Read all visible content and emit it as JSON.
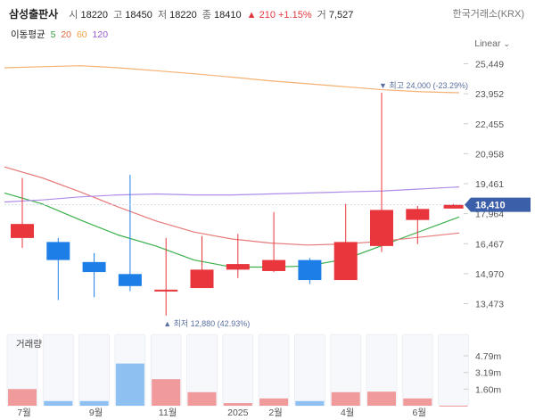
{
  "header": {
    "name": "삼성출판사",
    "open_label": "시",
    "open": "18220",
    "high_label": "고",
    "high": "18450",
    "low_label": "저",
    "low": "18220",
    "close_label": "종",
    "close": "18410",
    "change": "▲ 210 +1.15%",
    "volume_label": "거",
    "volume": "7,527",
    "exchange": "한국거래소(KRX)"
  },
  "ma": {
    "label": "이동평균",
    "items": [
      {
        "text": "5",
        "color": "#2e9d3b"
      },
      {
        "text": "20",
        "color": "#e06a3c"
      },
      {
        "text": "60",
        "color": "#f0a040"
      },
      {
        "text": "120",
        "color": "#9b59d0"
      }
    ]
  },
  "scale_label": "Linear",
  "chart_data": {
    "type": "candlestick",
    "period": "monthly",
    "price_ticks": [
      25449,
      23952,
      22455,
      20958,
      19461,
      17964,
      16467,
      14970,
      13473
    ],
    "volume_ticks": [
      "4.79m",
      "3.19m",
      "1.60m"
    ],
    "x_tick_labels": [
      "7월",
      "9월",
      "11월",
      "2025",
      "2월",
      "4월",
      "6월"
    ],
    "current_price": "18,410",
    "high_annotation": {
      "text": "최고 24,000 (-23.29%)",
      "value": 24000,
      "candle": 10
    },
    "low_annotation": {
      "text": "최저 12,880 (42.93%)",
      "value": 12880,
      "candle": 4
    },
    "candles": [
      {
        "o": 16750,
        "h": 19750,
        "l": 16250,
        "c": 17450,
        "v": 1.6
      },
      {
        "o": 16550,
        "h": 16750,
        "l": 13650,
        "c": 15650,
        "v": 0.45
      },
      {
        "o": 15550,
        "h": 16000,
        "l": 13800,
        "c": 15050,
        "v": 0.45
      },
      {
        "o": 14950,
        "h": 19900,
        "l": 14100,
        "c": 14350,
        "v": 4.05
      },
      {
        "o": 14080,
        "h": 16750,
        "l": 12880,
        "c": 14170,
        "v": 2.55
      },
      {
        "o": 14250,
        "h": 16850,
        "l": 14250,
        "c": 15170,
        "v": 1.3
      },
      {
        "o": 15170,
        "h": 16950,
        "l": 14750,
        "c": 15450,
        "v": 0.25
      },
      {
        "o": 15100,
        "h": 18050,
        "l": 15050,
        "c": 15650,
        "v": 0.7
      },
      {
        "o": 15650,
        "h": 15750,
        "l": 14450,
        "c": 14650,
        "v": 0.45
      },
      {
        "o": 14650,
        "h": 18450,
        "l": 14650,
        "c": 16550,
        "v": 1.3
      },
      {
        "o": 16350,
        "h": 24000,
        "l": 16050,
        "c": 18150,
        "v": 1.35
      },
      {
        "o": 17650,
        "h": 18350,
        "l": 16450,
        "c": 18200,
        "v": 0.7
      },
      {
        "o": 18220,
        "h": 18450,
        "l": 18220,
        "c": 18410,
        "v": 0.0075
      }
    ],
    "moving_averages": [
      {
        "period": 5,
        "color": "#3bb04a",
        "values": [
          19000,
          18450,
          17650,
          16900,
          16350,
          15650,
          15300,
          15300,
          15350,
          15700,
          16400,
          17100,
          17800
        ]
      },
      {
        "period": 20,
        "color": "#e87a7a",
        "values": [
          20300,
          19750,
          19050,
          18300,
          17600,
          17050,
          16700,
          16500,
          16400,
          16450,
          16600,
          16800,
          17000
        ]
      },
      {
        "period": 60,
        "color": "#f5b072",
        "values": [
          25250,
          25300,
          25350,
          25250,
          25100,
          24950,
          24780,
          24600,
          24450,
          24300,
          24150,
          24050,
          24000
        ]
      },
      {
        "period": 120,
        "color": "#b08de8",
        "values": [
          18550,
          18650,
          18800,
          18900,
          18950,
          18900,
          18900,
          18950,
          19000,
          19050,
          19100,
          19200,
          19300
        ]
      }
    ]
  }
}
